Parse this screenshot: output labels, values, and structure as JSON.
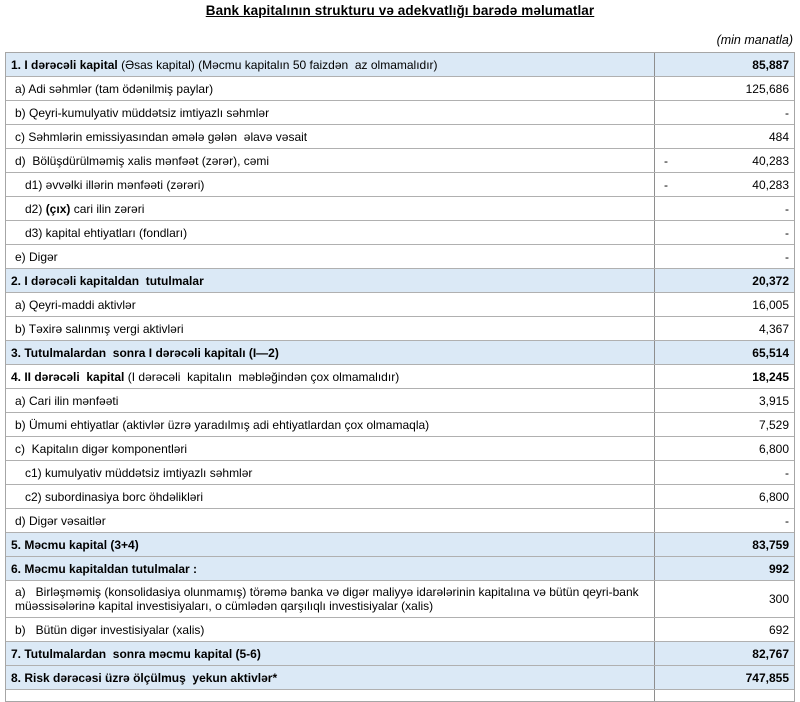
{
  "header": {
    "title": "Bank kapitalının strukturu və adekvatlığı barədə məlumatlar",
    "unit_note": "(min manatla)"
  },
  "colors": {
    "section_row_background": "#dbe9f6",
    "grid_border": "#a6a6a6",
    "text": "#000000"
  },
  "table": {
    "rows": [
      {
        "bold": "1. I dərəcəli kapital",
        "rest": " (Əsas kapital) (Məcmu kapitalın 50 faizdən  az olmamalıdır)",
        "value": "85,887",
        "blue": true,
        "section": true,
        "indent": 0
      },
      {
        "pre": "a) Adi səhmlər (tam ödənilmiş paylar)",
        "value": "125,686",
        "indent": 1
      },
      {
        "pre": "b) Qeyri-kumulyativ müddətsiz imtiyazlı səhmlər",
        "value": "-",
        "indent": 1
      },
      {
        "pre": "c) Səhmlərin emissiyasından əmələ gələn  əlavə vəsait",
        "value": "484",
        "indent": 1
      },
      {
        "pre": "d)  Bölüşdürülməmiş xalis mənfəət (zərər), cəmi",
        "value": "40,283",
        "neg": "-",
        "indent": 1
      },
      {
        "pre": "d1) əvvəlki illərin mənfəəti (zərəri)",
        "value": "40,283",
        "neg": "-",
        "indent": 2
      },
      {
        "pre": "d2) ",
        "bold": "(çıx)",
        "rest": " cari ilin zərəri",
        "value": "-",
        "indent": 2
      },
      {
        "pre": "d3) kapital ehtiyatları (fondları)",
        "value": "-",
        "indent": 2
      },
      {
        "pre": "e) Digər",
        "value": "-",
        "indent": 1
      },
      {
        "bold": "2. I dərəcəli kapitaldan  tutulmalar",
        "value": "20,372",
        "blue": true,
        "section": true,
        "indent": 0
      },
      {
        "pre": "a) Qeyri-maddi aktivlər",
        "value": "16,005",
        "indent": 1
      },
      {
        "pre": "b) Təxirə salınmış vergi aktivləri",
        "value": "4,367",
        "indent": 1
      },
      {
        "bold": "3. Tutulmalardan  sonra I dərəcəli kapitalı (I—2)",
        "value": "65,514",
        "blue": true,
        "section": true,
        "indent": 0
      },
      {
        "bold": "4. II dərəcəli  kapital",
        "rest": " (I dərəcəli  kapitalın  məbləğindən çox olmamalıdır)",
        "value": "18,245",
        "section": true,
        "indent": 0
      },
      {
        "pre": "a) Cari ilin mənfəəti",
        "value": "3,915",
        "indent": 1
      },
      {
        "pre": "b) Ümumi ehtiyatlar (aktivlər üzrə yaradılmış adi ehtiyatlardan çox olmamaqla)",
        "value": "7,529",
        "indent": 1
      },
      {
        "pre": "c)  Kapitalın digər komponentləri",
        "value": "6,800",
        "indent": 1
      },
      {
        "pre": "c1) kumulyativ müddətsiz imtiyazlı səhmlər",
        "value": "-",
        "indent": 2
      },
      {
        "pre": "c2) subordinasiya borc öhdəlikləri",
        "value": "6,800",
        "indent": 2
      },
      {
        "pre": "d) Digər vəsaitlər",
        "value": "-",
        "indent": 1
      },
      {
        "bold": "5. Məcmu kapital (3+4)",
        "value": "83,759",
        "blue": true,
        "section": true,
        "indent": 0
      },
      {
        "bold": "6. Məcmu kapitaldan tutulmalar :",
        "value": "992",
        "blue": true,
        "section": true,
        "indent": 0
      },
      {
        "pre": "a)   Birləşməmiş (konsolidasiya olunmamış) törəmə banka və digər maliyyə idarələrinin kapitalına və bütün qeyri-bank müəssisələrinə kapital investisiyaları, o cümlədən qarşılıqlı investisiyalar (xalis)",
        "value": "300",
        "indent": 1,
        "tall": true
      },
      {
        "pre": "b)   Bütün digər investisiyalar (xalis)",
        "value": "692",
        "indent": 1
      },
      {
        "bold": "7. Tutulmalardan  sonra məcmu kapital (5-6)",
        "value": "82,767",
        "blue": true,
        "section": true,
        "indent": 0
      },
      {
        "bold": "8. Risk dərəcəsi üzrə ölçülmuş  yekun aktivlər*",
        "value": "747,855",
        "blue": true,
        "section": true,
        "indent": 0
      }
    ]
  }
}
